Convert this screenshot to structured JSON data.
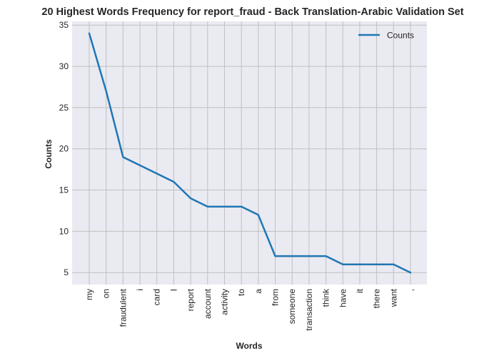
{
  "chart_data": {
    "type": "line",
    "title": "20 Highest Words Frequency for report_fraud - Back Translation-Arabic Validation Set",
    "xlabel": "Words",
    "ylabel": "Counts",
    "categories": [
      "my",
      "on",
      "fraudulent",
      "i",
      "card",
      "I",
      "report",
      "account",
      "activity",
      "to",
      "a",
      "from",
      "someone",
      "transaction",
      "think",
      "have",
      "it",
      "there",
      "want",
      ","
    ],
    "series": [
      {
        "name": "Counts",
        "values": [
          34,
          27,
          19,
          18,
          17,
          16,
          14,
          13,
          13,
          13,
          12,
          7,
          7,
          7,
          7,
          6,
          6,
          6,
          6,
          5
        ],
        "color": "#1f77b4"
      }
    ],
    "yticks": [
      5,
      10,
      15,
      20,
      25,
      30,
      35
    ],
    "ylim": [
      3.55,
      35.45
    ],
    "grid": true,
    "legend_position": "top-right",
    "background_color": "#eaeaf2",
    "grid_color": "#c0c0c0"
  }
}
